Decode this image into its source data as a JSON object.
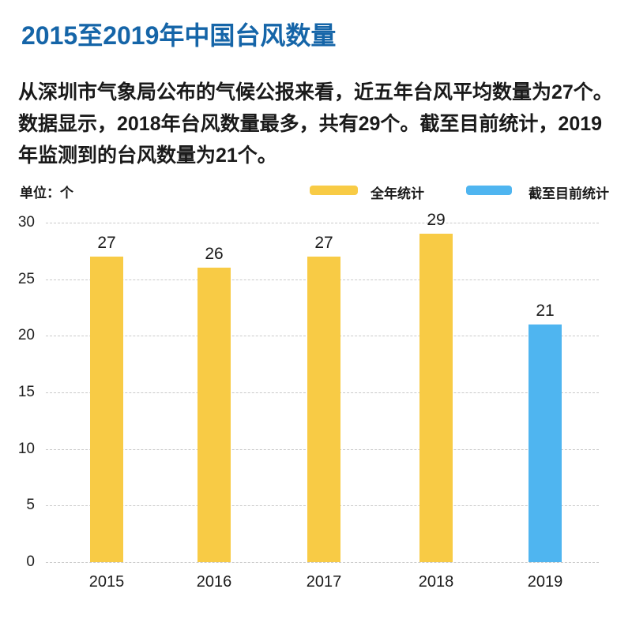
{
  "page": {
    "title": "2015至2019年中国台风数量",
    "intro_lines": [
      "从深圳市气象局公布的气候公报来看，近五年台风平均数量为27个。",
      "数据显示，2018年台风数量最多，共有29个。截至目前统计，2019",
      "年监测到的台风数量为21个。"
    ]
  },
  "colors": {
    "title_blue": "#1565A8",
    "bar_yellow": "#F8CB45",
    "bar_blue": "#4FB5F0",
    "body_text": "#1A1A1A",
    "gridline": "#C9C9C9"
  },
  "chart_data": {
    "type": "bar",
    "title": "2015至2019年中国台风数量",
    "unit_label": "单位：个",
    "categories": [
      "2015",
      "2016",
      "2017",
      "2018",
      "2019"
    ],
    "series": [
      {
        "name": "全年统计",
        "color": "#F8CB45",
        "values": [
          27,
          26,
          27,
          29,
          null
        ]
      },
      {
        "name": "截至目前统计",
        "color": "#4FB5F0",
        "values": [
          null,
          null,
          null,
          null,
          21
        ]
      }
    ],
    "ylim": [
      0,
      30
    ],
    "ytick_step": 5,
    "yticks": [
      0,
      5,
      10,
      15,
      20,
      25,
      30
    ],
    "grid": "horizontal-dashed",
    "legend_position": "top-right",
    "value_labels": true
  }
}
